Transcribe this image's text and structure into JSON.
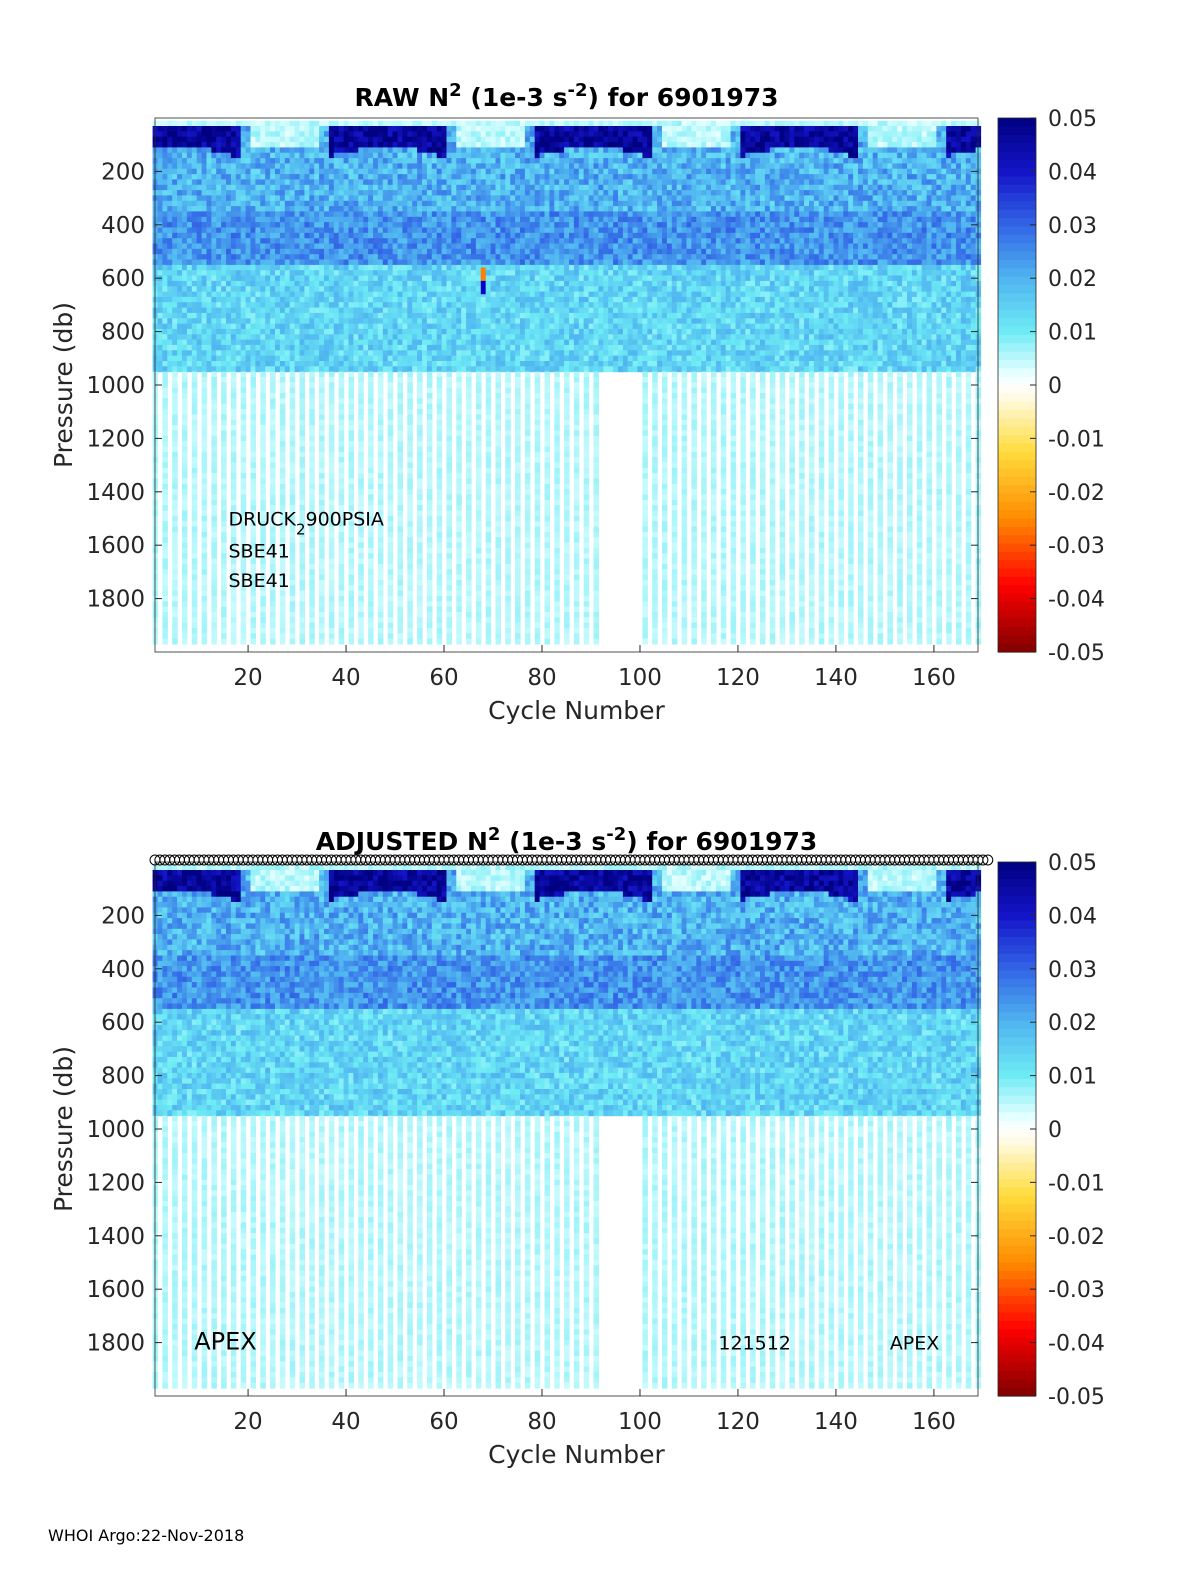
{
  "footer": "WHOI Argo:22-Nov-2018",
  "chart_data": [
    {
      "type": "heatmap",
      "title_prefix": "RAW N",
      "title_exp": "2",
      "title_mid": " (1e-3 s",
      "title_unit_exp": "-2",
      "title_suffix": ") for 6901973",
      "xlabel": "Cycle Number",
      "ylabel": "Pressure (db)",
      "xlim": [
        1,
        169
      ],
      "ylim": [
        0,
        2000
      ],
      "y_reversed": true,
      "xticks": [
        20,
        40,
        60,
        80,
        100,
        120,
        140,
        160
      ],
      "yticks": [
        200,
        400,
        600,
        800,
        1000,
        1200,
        1400,
        1600,
        1800
      ],
      "colorbar": {
        "range": [
          -0.05,
          0.05
        ],
        "ticks": [
          "0.05",
          "0.04",
          "0.03",
          "0.02",
          "0.01",
          "0",
          "-0.01",
          "-0.02",
          "-0.03",
          "-0.04",
          "-0.05"
        ],
        "colormap": "jet-with-white-center"
      },
      "annotations": [
        {
          "text": "DRUCK",
          "sub": "2",
          "rest": "900PSIA",
          "x": 16,
          "p": 1500
        },
        {
          "text": "SBE41",
          "x": 16,
          "p": 1620
        },
        {
          "text": "SBE41",
          "x": 16,
          "p": 1730
        }
      ],
      "profile_depth_max": 960,
      "anomaly": {
        "cycle": 68,
        "p_from": 560,
        "p_to": 660,
        "colors": [
          "#ff7f00",
          "#0000cc"
        ]
      },
      "qc_markers": false
    },
    {
      "type": "heatmap",
      "title_prefix": "ADJUSTED N",
      "title_exp": "2",
      "title_mid": " (1e-3 s",
      "title_unit_exp": "-2",
      "title_suffix": ") for 6901973",
      "xlabel": "Cycle Number",
      "ylabel": "Pressure (db)",
      "xlim": [
        1,
        169
      ],
      "ylim": [
        0,
        2000
      ],
      "y_reversed": true,
      "xticks": [
        20,
        40,
        60,
        80,
        100,
        120,
        140,
        160
      ],
      "yticks": [
        200,
        400,
        600,
        800,
        1000,
        1200,
        1400,
        1600,
        1800
      ],
      "colorbar": {
        "range": [
          -0.05,
          0.05
        ],
        "ticks": [
          "0.05",
          "0.04",
          "0.03",
          "0.02",
          "0.01",
          "0",
          "-0.01",
          "-0.02",
          "-0.03",
          "-0.04",
          "-0.05"
        ],
        "colormap": "jet-with-white-center"
      },
      "annotations": [
        {
          "text": "APEX",
          "x": 9,
          "p": 1800,
          "size": "large"
        },
        {
          "text": "121512",
          "x": 116,
          "p": 1800
        },
        {
          "text": "APEX",
          "x": 151,
          "p": 1800
        }
      ],
      "profile_depth_max": 960,
      "anomaly": null,
      "qc_markers": true
    }
  ]
}
